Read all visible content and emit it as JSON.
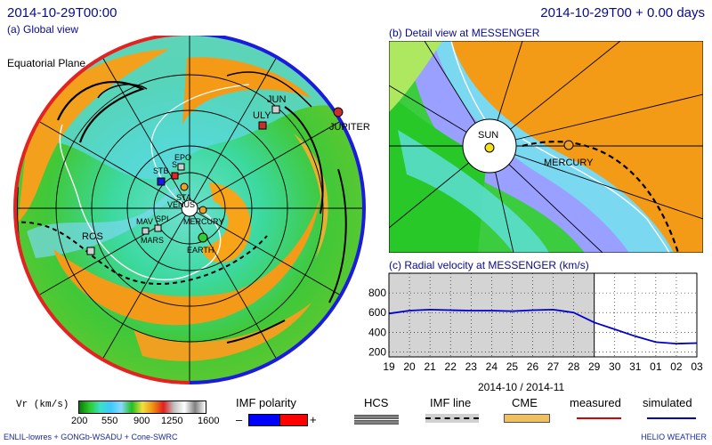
{
  "header": {
    "left_time": "2014-10-29T00:00",
    "right_time": "2014-10-29T00 + 0.00 days"
  },
  "global_view": {
    "title": "(a) Global view",
    "plane_label": "Equatorial Plane",
    "labels": {
      "jun": "JUN",
      "uly": "ULY",
      "jupiter": "JUPITER",
      "epo": "EPO",
      "stb": "STB",
      "sta": "STA",
      "venus": "VENUS",
      "mav": "MAV",
      "spi": "SPI",
      "mars": "MARS",
      "mercury": "MERCURY",
      "earth": "EARTH",
      "ros": "ROS",
      "s": "S"
    }
  },
  "detail_view": {
    "title": "(b) Detail view at MESSENGER",
    "sun_label": "SUN",
    "mercury_label": "MERCURY"
  },
  "radial_velocity": {
    "title": "(c) Radial velocity at MESSENGER (km/s)",
    "date_label": "2014-10 / 2014-11",
    "x_ticks": [
      "19",
      "20",
      "21",
      "22",
      "23",
      "24",
      "25",
      "26",
      "27",
      "28",
      "29",
      "30",
      "31",
      "01",
      "02",
      "03"
    ],
    "y_ticks": [
      "200",
      "400",
      "600",
      "800"
    ]
  },
  "chart_data": {
    "type": "line",
    "title": "(c) Radial velocity at MESSENGER (km/s)",
    "xlabel": "2014-10 / 2014-11",
    "ylabel": "",
    "x": [
      "19",
      "20",
      "21",
      "22",
      "23",
      "24",
      "25",
      "26",
      "27",
      "28",
      "29",
      "30",
      "31",
      "01",
      "02",
      "03"
    ],
    "ylim": [
      150,
      1000
    ],
    "series": [
      {
        "name": "simulated",
        "color": "#0000cc",
        "values": [
          590,
          620,
          630,
          625,
          620,
          620,
          615,
          625,
          630,
          600,
          500,
          430,
          360,
          300,
          285,
          290
        ]
      }
    ],
    "current_time_index": 10,
    "grid": true
  },
  "legend": {
    "vr_label": "Vr (km/s)",
    "vr_ticks": [
      "200",
      "550",
      "900",
      "1250",
      "1600"
    ],
    "imf_polarity_label": "IMF polarity",
    "minus": "–",
    "plus": "+",
    "hcs_label": "HCS",
    "imf_line_label": "IMF line",
    "cme_label": "CME",
    "measured_label": "measured",
    "simulated_label": "simulated",
    "colors": {
      "measured": "#dd0000",
      "simulated": "#0000cc",
      "negative_polarity": "#0000ff",
      "positive_polarity": "#ff0000",
      "cme": "#f0c060"
    }
  },
  "footer": {
    "model": "ENLIL-lowres + GONGb-WSADU + Cone-SWRC",
    "brand": "HELIO WEATHER"
  }
}
